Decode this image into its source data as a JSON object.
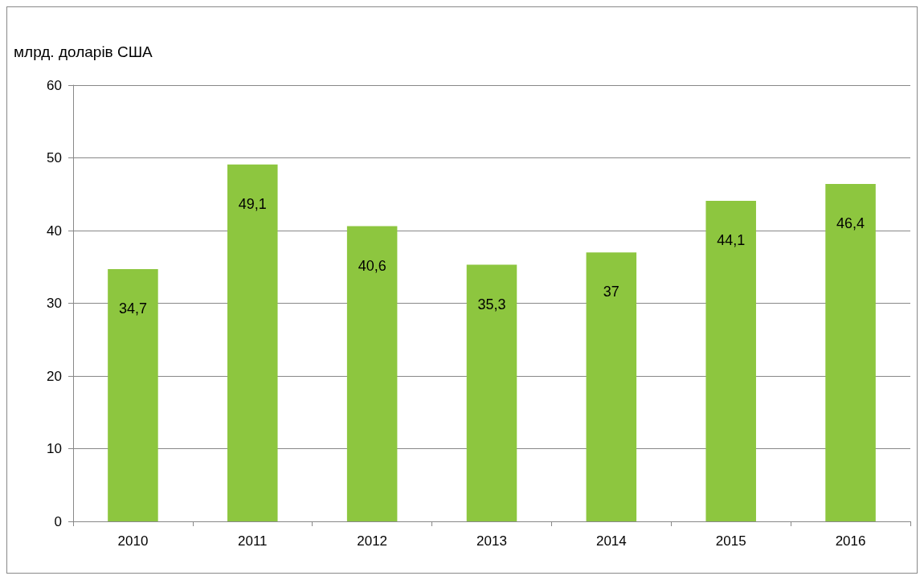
{
  "chart_data": {
    "type": "bar",
    "ylabel": "млрд. доларів США",
    "categories": [
      "2010",
      "2011",
      "2012",
      "2013",
      "2014",
      "2015",
      "2016"
    ],
    "values": [
      34.7,
      49.1,
      40.6,
      35.3,
      37,
      44.1,
      46.4
    ],
    "value_labels": [
      "34,7",
      "49,1",
      "40,6",
      "35,3",
      "37",
      "44,1",
      "46,4"
    ],
    "color": "#8dc63f",
    "ylim": [
      0,
      60
    ],
    "yticks": [
      0,
      10,
      20,
      30,
      40,
      50,
      60
    ],
    "grid": "y"
  }
}
